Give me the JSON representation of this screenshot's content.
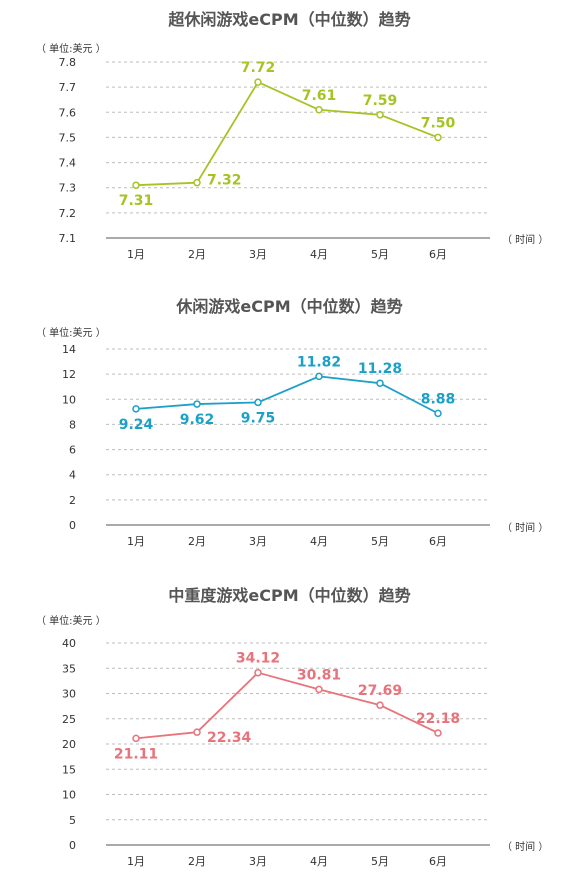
{
  "chart_data": [
    {
      "type": "line",
      "title": "超休闲游戏eCPM（中位数）趋势",
      "unit_label": "（ 单位:美元 ）",
      "x_caption": "（ 时间 ）",
      "categories": [
        "1月",
        "2月",
        "3月",
        "4月",
        "5月",
        "6月"
      ],
      "values": [
        7.31,
        7.32,
        7.72,
        7.61,
        7.59,
        7.5
      ],
      "value_labels": [
        "7.31",
        "7.32",
        "7.72",
        "7.61",
        "7.59",
        "7.50"
      ],
      "ylim": [
        7.1,
        7.8
      ],
      "yticks": [
        "7.1",
        "7.2",
        "7.3",
        "7.4",
        "7.5",
        "7.6",
        "7.7",
        "7.8"
      ],
      "color": "#a5c424",
      "grid": true
    },
    {
      "type": "line",
      "title": "休闲游戏eCPM（中位数）趋势",
      "unit_label": "（ 单位:美元 ）",
      "x_caption": "（ 时间 ）",
      "categories": [
        "1月",
        "2月",
        "3月",
        "4月",
        "5月",
        "6月"
      ],
      "values": [
        9.24,
        9.62,
        9.75,
        11.82,
        11.28,
        8.88
      ],
      "value_labels": [
        "9.24",
        "9.62",
        "9.75",
        "11.82",
        "11.28",
        "8.88"
      ],
      "ylim": [
        0,
        14
      ],
      "yticks": [
        "0",
        "2",
        "4",
        "6",
        "8",
        "10",
        "12",
        "14"
      ],
      "color": "#1ba0c8",
      "grid": true
    },
    {
      "type": "line",
      "title": "中重度游戏eCPM（中位数）趋势",
      "unit_label": "（ 单位:美元 ）",
      "x_caption": "（ 时间 ）",
      "categories": [
        "1月",
        "2月",
        "3月",
        "4月",
        "5月",
        "6月"
      ],
      "values": [
        21.11,
        22.34,
        34.12,
        30.81,
        27.69,
        22.18
      ],
      "value_labels": [
        "21.11",
        "22.34",
        "34.12",
        "30.81",
        "27.69",
        "22.18"
      ],
      "ylim": [
        0,
        40
      ],
      "yticks": [
        "0",
        "5",
        "10",
        "15",
        "20",
        "25",
        "30",
        "35",
        "40"
      ],
      "color": "#e8737a",
      "grid": true
    }
  ]
}
